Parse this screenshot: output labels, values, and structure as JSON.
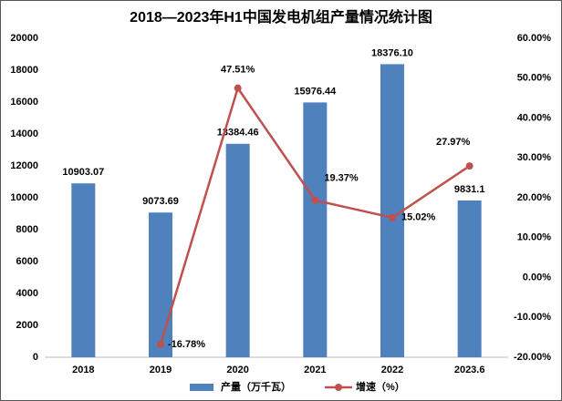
{
  "chart_data": {
    "type": "bar",
    "title": "2018—2023年H1中国发电机组产量情况统计图",
    "categories": [
      "2018",
      "2019",
      "2020",
      "2021",
      "2022",
      "2023.6"
    ],
    "series": [
      {
        "name": "产量（万千瓦）",
        "type": "bar",
        "color": "#4f81bd",
        "values": [
          10903.07,
          9073.69,
          13384.46,
          15976.44,
          18376.1,
          9831.1
        ],
        "value_labels": [
          "10903.07",
          "9073.69",
          "13384.46",
          "15976.44",
          "18376.10",
          "9831.1"
        ]
      },
      {
        "name": "增速（%）",
        "type": "line",
        "axis": "y2",
        "color": "#c0504d",
        "values": [
          null,
          -16.78,
          47.51,
          19.37,
          15.02,
          27.97
        ],
        "value_labels": [
          null,
          "-16.78%",
          "47.51%",
          "19.37%",
          "15.02%",
          "27.97%"
        ]
      }
    ],
    "ylim": [
      0,
      20000
    ],
    "yticks": [
      0,
      2000,
      4000,
      6000,
      8000,
      10000,
      12000,
      14000,
      16000,
      18000,
      20000
    ],
    "y2lim": [
      -20,
      60
    ],
    "y2ticks": [
      {
        "value": -20,
        "label": "-20.00%"
      },
      {
        "value": -10,
        "label": "-10.00%"
      },
      {
        "value": 0,
        "label": "0.00%"
      },
      {
        "value": 10,
        "label": "10.00%"
      },
      {
        "value": 20,
        "label": "20.00%"
      },
      {
        "value": 30,
        "label": "30.00%"
      },
      {
        "value": 40,
        "label": "40.00%"
      },
      {
        "value": 50,
        "label": "50.00%"
      },
      {
        "value": 60,
        "label": "60.00%"
      }
    ],
    "grid": false,
    "legend": "bottom"
  }
}
